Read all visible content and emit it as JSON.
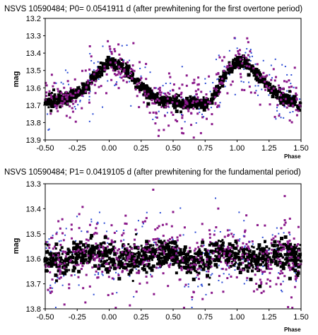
{
  "colors": {
    "black": "#000000",
    "magenta": "#8b1a8b",
    "blue": "#2b4bd4"
  },
  "chart_data": [
    {
      "type": "scatter",
      "title": "NSVS 10590484; P0= 0.0541911 d (after prewhitening for the first overtone period)",
      "xlabel": "Phase",
      "ylabel": "mag",
      "xlim": [
        -0.5,
        1.5
      ],
      "ylim": [
        13.9,
        13.2
      ],
      "y_inverted": true,
      "xticks": [
        "-0.50",
        "-0.25",
        "0.00",
        "0.25",
        "0.50",
        "0.75",
        "1.00",
        "1.25",
        "1.50"
      ],
      "yticks": [
        "13.2",
        "13.3",
        "13.4",
        "13.5",
        "13.6",
        "13.7",
        "13.8",
        "13.9"
      ],
      "grid": false,
      "light_curve": {
        "phase": [
          -0.5,
          -0.4,
          -0.3,
          -0.2,
          -0.1,
          0.0,
          0.1,
          0.2,
          0.3,
          0.4,
          0.5,
          0.6,
          0.7,
          0.8,
          0.9,
          1.0,
          1.1,
          1.2,
          1.3,
          1.4,
          1.5
        ],
        "mag": [
          13.67,
          13.66,
          13.64,
          13.6,
          13.52,
          13.44,
          13.47,
          13.55,
          13.62,
          13.66,
          13.68,
          13.68,
          13.68,
          13.67,
          13.52,
          13.44,
          13.47,
          13.55,
          13.62,
          13.66,
          13.68
        ]
      },
      "series_colors": [
        "black",
        "magenta",
        "blue"
      ]
    },
    {
      "type": "scatter",
      "title": "NSVS 10590484; P1= 0.0419105 d (after prewhitening for the fundamental period)",
      "xlabel": "Phase",
      "ylabel": "mag",
      "xlim": [
        -0.5,
        1.5
      ],
      "ylim": [
        13.8,
        13.3
      ],
      "y_inverted": true,
      "xticks": [
        "-0.50",
        "-0.25",
        "0.00",
        "0.25",
        "0.50",
        "0.75",
        "1.00",
        "1.25",
        "1.50"
      ],
      "yticks": [
        "13.3",
        "13.4",
        "13.5",
        "13.6",
        "13.7",
        "13.8"
      ],
      "grid": false,
      "light_curve": {
        "phase": [
          -0.5,
          -0.375,
          -0.25,
          -0.125,
          0.0,
          0.125,
          0.25,
          0.375,
          0.5,
          0.625,
          0.75,
          0.875,
          1.0,
          1.125,
          1.25,
          1.375,
          1.5
        ],
        "mag": [
          13.6,
          13.61,
          13.58,
          13.57,
          13.59,
          13.6,
          13.59,
          13.57,
          13.58,
          13.61,
          13.6,
          13.57,
          13.58,
          13.6,
          13.59,
          13.57,
          13.6
        ]
      },
      "series_colors": [
        "black",
        "magenta",
        "blue"
      ]
    }
  ]
}
